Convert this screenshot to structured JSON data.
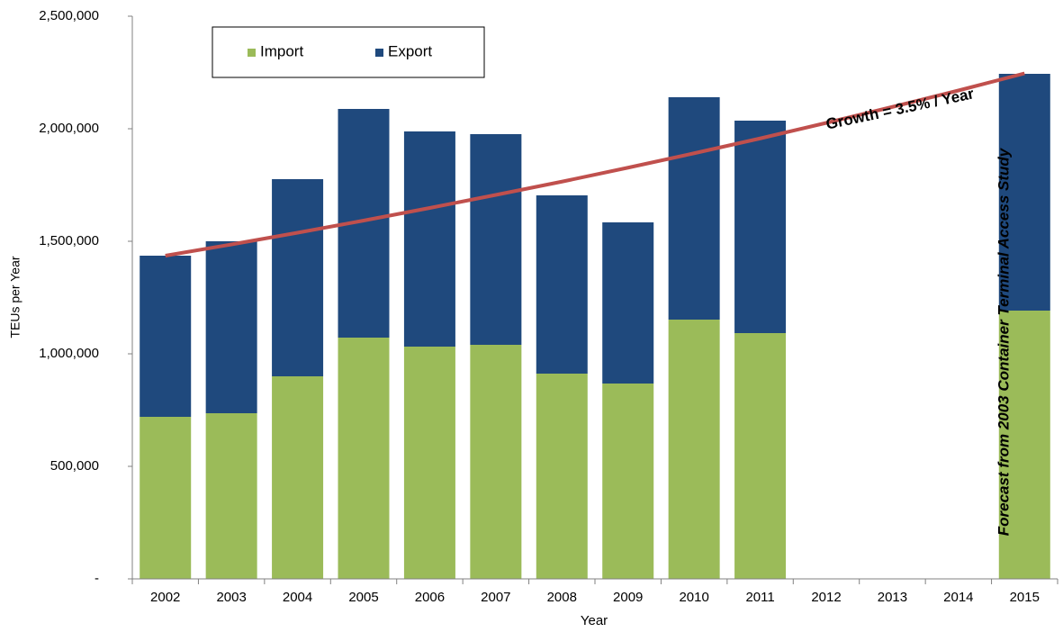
{
  "chart_data": {
    "type": "bar",
    "stacked": true,
    "x_label": "Year",
    "y_label": "TEUs per Year",
    "categories": [
      "2002",
      "2003",
      "2004",
      "2005",
      "2006",
      "2007",
      "2008",
      "2009",
      "2010",
      "2011",
      "2012",
      "2013",
      "2014",
      "2015"
    ],
    "series": [
      {
        "name": "Import",
        "color": "#9bbb59",
        "values": [
          720000,
          736000,
          900000,
          1072000,
          1032000,
          1040000,
          912000,
          868000,
          1152000,
          1092000,
          null,
          null,
          null,
          1192000
        ]
      },
      {
        "name": "Export",
        "color": "#1f497d",
        "values": [
          716000,
          764000,
          876000,
          1016000,
          956000,
          936000,
          792000,
          716000,
          988000,
          944000,
          null,
          null,
          null,
          1052000
        ]
      }
    ],
    "trend": {
      "color": "#c0504d",
      "label": "Growth = 3.5% / Year",
      "values": [
        1436000,
        1486000,
        1538000,
        1592000,
        1648000,
        1706000,
        1765000,
        1827000,
        1891000,
        1957000,
        2026000,
        2097000,
        2170000,
        2246000
      ]
    },
    "annotation": "Forecast from 2003 Container Terminal Access Study",
    "ylim": [
      0,
      2500000
    ],
    "yticks": [
      {
        "value": 0,
        "label": "-"
      },
      {
        "value": 500000,
        "label": "500,000"
      },
      {
        "value": 1000000,
        "label": "1,000,000"
      },
      {
        "value": 1500000,
        "label": "1,500,000"
      },
      {
        "value": 2000000,
        "label": "2,000,000"
      },
      {
        "value": 2500000,
        "label": "2,500,000"
      }
    ],
    "grid": false,
    "legend": "top-left"
  }
}
